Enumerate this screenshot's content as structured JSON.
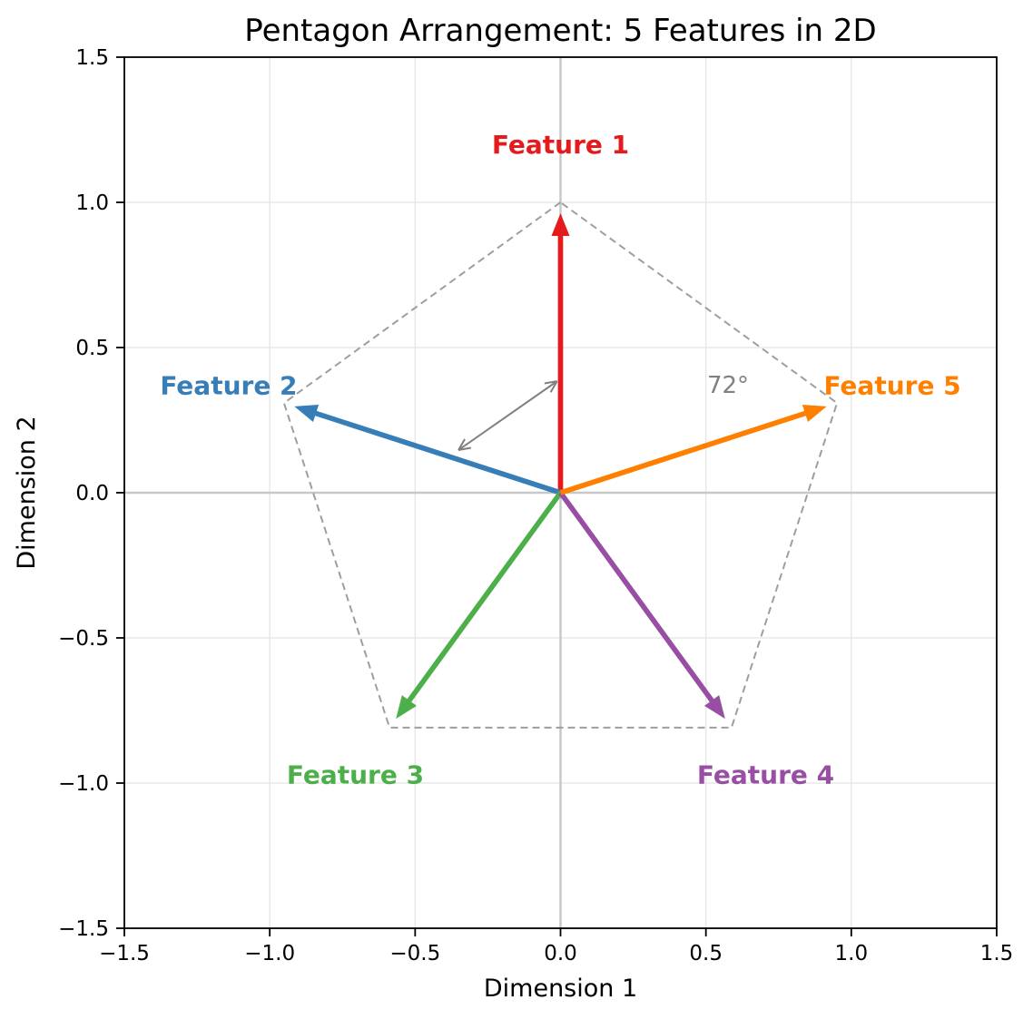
{
  "figure": {
    "title": "Pentagon Arrangement: 5 Features in 2D"
  },
  "chart_data": {
    "type": "quiver",
    "title": "Pentagon Arrangement: 5 Features in 2D",
    "xlabel": "Dimension 1",
    "ylabel": "Dimension 2",
    "xlim": [
      -1.5,
      1.5
    ],
    "ylim": [
      -1.5,
      1.5
    ],
    "xticks": [
      -1.5,
      -1.0,
      -0.5,
      0.0,
      0.5,
      1.0,
      1.5
    ],
    "yticks": [
      -1.5,
      -1.0,
      -0.5,
      0.0,
      0.5,
      1.0,
      1.5
    ],
    "xtick_labels": [
      "−1.5",
      "−1.0",
      "−0.5",
      "0.0",
      "0.5",
      "1.0",
      "1.5"
    ],
    "ytick_labels": [
      "−1.5",
      "−1.0",
      "−0.5",
      "0.0",
      "0.5",
      "1.0",
      "1.5"
    ],
    "grid": true,
    "grid_color": "#e8e8e8",
    "zero_line_color": "#c8c8c8",
    "background_color": "#ffffff",
    "vectors": [
      {
        "label": "Feature 1",
        "angle_deg": 90,
        "x": 0.0,
        "y": 1.0,
        "color": "#e41a1c"
      },
      {
        "label": "Feature 2",
        "angle_deg": 162,
        "x": -0.951,
        "y": 0.309,
        "color": "#377eb8"
      },
      {
        "label": "Feature 3",
        "angle_deg": 234,
        "x": -0.588,
        "y": -0.809,
        "color": "#4daf4a"
      },
      {
        "label": "Feature 4",
        "angle_deg": 306,
        "x": 0.588,
        "y": -0.809,
        "color": "#984ea3"
      },
      {
        "label": "Feature 5",
        "angle_deg": 18,
        "x": 0.951,
        "y": 0.309,
        "color": "#ff7f00"
      }
    ],
    "label_radius": 1.2,
    "pentagon_outline": {
      "color": "#9e9e9e",
      "style": "dashed"
    },
    "angle_between_vectors_deg": 72,
    "angle_annotation": {
      "text": "72°",
      "color": "#808080",
      "text_x": 0.576,
      "text_y": 0.372,
      "arrow_from_x": -0.351,
      "arrow_from_y": 0.147,
      "arrow_to_x": -0.012,
      "arrow_to_y": 0.384
    }
  }
}
